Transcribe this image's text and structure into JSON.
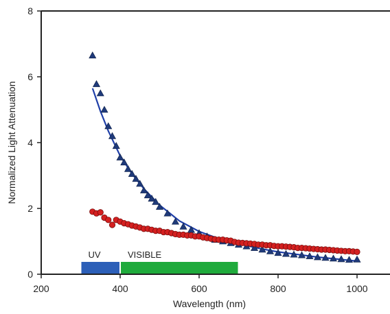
{
  "chart_data": {
    "type": "scatter",
    "title": "",
    "xlabel": "Wavelength (nm)",
    "ylabel": "Normalized Light Attenuation",
    "xlim": [
      200,
      1100
    ],
    "ylim": [
      0,
      8
    ],
    "xticks": [
      200,
      400,
      600,
      800,
      1000
    ],
    "yticks": [
      0,
      2,
      4,
      6,
      8
    ],
    "grid": false,
    "colors": {
      "triangles": "#1f3a7a",
      "circles": "#d42020",
      "fit": "#1f3fa8",
      "uv_band": "#2c5fb8",
      "visible_band": "#1faa3c"
    },
    "bands": [
      {
        "label": "UV",
        "start": 300,
        "end": 400,
        "color": "#2c5fb8"
      },
      {
        "label": "VISIBLE",
        "start": 400,
        "end": 700,
        "color": "#1faa3c"
      }
    ],
    "series": [
      {
        "marker": "triangle",
        "x": [
          330,
          340,
          350,
          360,
          370,
          380,
          390,
          400,
          410,
          420,
          430,
          440,
          450,
          460,
          470,
          480,
          490,
          500,
          520,
          540,
          560,
          580,
          600,
          620,
          640,
          660,
          680,
          700,
          720,
          740,
          760,
          780,
          800,
          820,
          840,
          860,
          880,
          900,
          920,
          940,
          960,
          980,
          1000
        ],
        "y": [
          6.65,
          5.78,
          5.5,
          5.0,
          4.5,
          4.2,
          3.9,
          3.55,
          3.4,
          3.2,
          3.05,
          2.9,
          2.75,
          2.55,
          2.4,
          2.3,
          2.2,
          2.05,
          1.85,
          1.6,
          1.45,
          1.35,
          1.25,
          1.15,
          1.05,
          1.0,
          0.95,
          0.9,
          0.85,
          0.8,
          0.75,
          0.7,
          0.65,
          0.62,
          0.6,
          0.58,
          0.55,
          0.52,
          0.5,
          0.48,
          0.46,
          0.44,
          0.45
        ]
      },
      {
        "marker": "circle",
        "x": [
          330,
          340,
          350,
          360,
          370,
          380,
          390,
          400,
          410,
          420,
          430,
          440,
          450,
          460,
          470,
          480,
          490,
          500,
          510,
          520,
          530,
          540,
          550,
          560,
          570,
          580,
          590,
          600,
          610,
          620,
          630,
          640,
          650,
          660,
          670,
          680,
          690,
          700,
          710,
          720,
          730,
          740,
          750,
          760,
          770,
          780,
          790,
          800,
          810,
          820,
          830,
          840,
          850,
          860,
          870,
          880,
          890,
          900,
          910,
          920,
          930,
          940,
          950,
          960,
          970,
          980,
          990,
          1000
        ],
        "y": [
          1.9,
          1.85,
          1.88,
          1.72,
          1.65,
          1.5,
          1.65,
          1.6,
          1.55,
          1.52,
          1.48,
          1.45,
          1.42,
          1.38,
          1.38,
          1.35,
          1.32,
          1.32,
          1.28,
          1.28,
          1.25,
          1.22,
          1.2,
          1.2,
          1.18,
          1.18,
          1.15,
          1.15,
          1.12,
          1.1,
          1.08,
          1.06,
          1.05,
          1.05,
          1.03,
          1.02,
          0.98,
          0.96,
          0.95,
          0.94,
          0.93,
          0.92,
          0.9,
          0.9,
          0.88,
          0.88,
          0.86,
          0.85,
          0.85,
          0.84,
          0.83,
          0.82,
          0.8,
          0.8,
          0.79,
          0.78,
          0.77,
          0.76,
          0.75,
          0.75,
          0.74,
          0.73,
          0.72,
          0.71,
          0.7,
          0.7,
          0.69,
          0.68
        ]
      }
    ],
    "fit_curve": {
      "style": "power-law",
      "x": [
        330,
        350,
        370,
        400,
        430,
        460,
        500,
        550,
        600,
        650,
        700,
        750,
        800,
        850,
        900,
        950,
        1000
      ],
      "y": [
        5.65,
        4.95,
        4.35,
        3.6,
        3.05,
        2.6,
        2.1,
        1.62,
        1.3,
        1.08,
        0.92,
        0.79,
        0.68,
        0.6,
        0.52,
        0.46,
        0.4
      ]
    }
  }
}
